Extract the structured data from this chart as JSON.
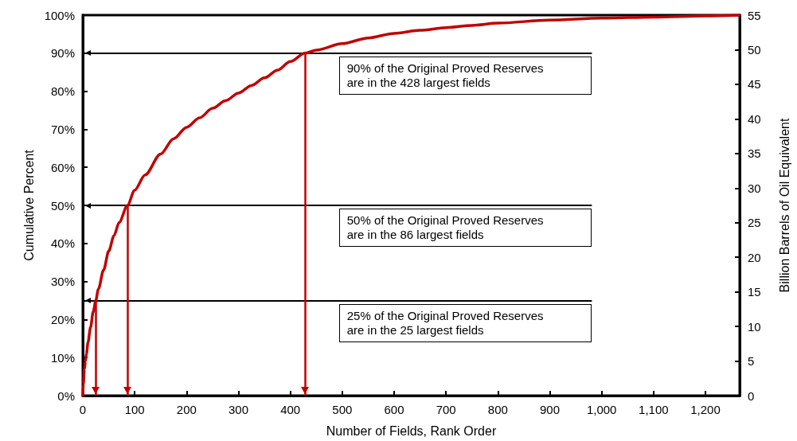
{
  "chart_data": {
    "type": "line",
    "xlabel": "Number of Fields, Rank Order",
    "ylabel": "Cumulative Percent",
    "y2label": "Billion Barrels of Oil Equivalent",
    "x": [
      0,
      1,
      3,
      5,
      7,
      10,
      15,
      20,
      25,
      30,
      40,
      50,
      60,
      70,
      86,
      100,
      120,
      150,
      175,
      200,
      225,
      250,
      275,
      300,
      325,
      350,
      375,
      400,
      428,
      450,
      500,
      550,
      600,
      650,
      700,
      750,
      800,
      900,
      1000,
      1100,
      1200,
      1266
    ],
    "series": [
      {
        "color": "#c00000",
        "values": [
          0,
          3,
          7,
          9,
          11,
          14,
          18,
          22,
          25,
          28,
          33,
          38,
          42,
          45.5,
          50,
          54,
          58,
          63.5,
          67.5,
          70.5,
          73,
          75.5,
          77.5,
          79.5,
          81.5,
          83.5,
          85.5,
          87.8,
          90,
          90.8,
          92.5,
          94,
          95.2,
          96,
          96.7,
          97.3,
          97.9,
          98.7,
          99.2,
          99.5,
          99.8,
          100
        ]
      }
    ],
    "xlim": [
      0,
      1266
    ],
    "xticks": [
      0,
      100,
      200,
      300,
      400,
      500,
      600,
      700,
      800,
      900,
      {
        "value": 1000,
        "label": "1,000"
      },
      {
        "value": 1100,
        "label": "1,100"
      },
      {
        "value": 1200,
        "label": "1,200"
      }
    ],
    "ylim": [
      0,
      100
    ],
    "yticks": [
      {
        "value": 0,
        "label": "0%"
      },
      {
        "value": 10,
        "label": "10%"
      },
      {
        "value": 20,
        "label": "20%"
      },
      {
        "value": 30,
        "label": "30%"
      },
      {
        "value": 40,
        "label": "40%"
      },
      {
        "value": 50,
        "label": "50%"
      },
      {
        "value": 60,
        "label": "60%"
      },
      {
        "value": 70,
        "label": "70%"
      },
      {
        "value": 80,
        "label": "80%"
      },
      {
        "value": 90,
        "label": "90%"
      },
      {
        "value": 100,
        "label": "100%"
      }
    ],
    "y2lim": [
      0,
      55
    ],
    "y2ticks": [
      0,
      5,
      10,
      15,
      20,
      25,
      30,
      35,
      40,
      45,
      50,
      55
    ],
    "ref_lines": [
      {
        "axis": "y",
        "value": 90,
        "color": "#000000"
      },
      {
        "axis": "y",
        "value": 50,
        "color": "#000000"
      },
      {
        "axis": "y",
        "value": 25,
        "color": "#000000"
      },
      {
        "axis": "x",
        "value": 428,
        "color": "#c00000"
      },
      {
        "axis": "x",
        "value": 86,
        "color": "#c00000"
      },
      {
        "axis": "x",
        "value": 25,
        "color": "#c00000"
      }
    ],
    "annotations": [
      "90% of the Original Proved Reserves\nare in the 428 largest fields",
      "50% of the Original Proved Reserves\nare in the 86 largest fields",
      "25% of the Original Proved Reserves\nare in the 25 largest fields"
    ],
    "grid": false,
    "marker": "none",
    "line_style": "solid"
  }
}
